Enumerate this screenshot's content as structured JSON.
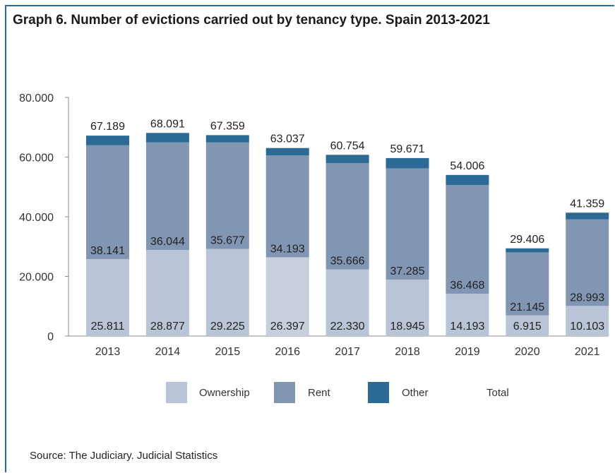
{
  "header": {
    "title": "Graph 6. Number of evictions carried out by tenancy type. Spain 2013-2021"
  },
  "footer": {
    "source": "Source: The Judiciary. Judicial Statistics"
  },
  "colors": {
    "ownership": "#b9c5d6",
    "ownership_2016": "#c7cfdd",
    "rent": "#8196b2",
    "other": "#2a6a95",
    "frame": "#2f6b9a"
  },
  "chart_data": {
    "type": "bar",
    "stacked": true,
    "categories": [
      "2013",
      "2014",
      "2015",
      "2016",
      "2017",
      "2018",
      "2019",
      "2020",
      "2021"
    ],
    "series": [
      {
        "name": "Ownership",
        "values": [
          25811,
          28877,
          29225,
          26397,
          22330,
          18945,
          14193,
          6915,
          10103
        ],
        "labels": [
          "25.811",
          "28.877",
          "29.225",
          "26.397",
          "22.330",
          "18.945",
          "14.193",
          "6.915",
          "10.103"
        ]
      },
      {
        "name": "Rent",
        "values": [
          38141,
          36044,
          35677,
          34193,
          35666,
          37285,
          36468,
          21145,
          28993
        ],
        "labels": [
          "38.141",
          "36.044",
          "35.677",
          "34.193",
          "35.666",
          "37.285",
          "36.468",
          "21.145",
          "28.993"
        ]
      },
      {
        "name": "Other",
        "values": [
          3237,
          3170,
          2457,
          2447,
          2758,
          3441,
          3345,
          1346,
          2263
        ]
      }
    ],
    "totals": {
      "name": "Total",
      "values": [
        67189,
        68091,
        67359,
        63037,
        60754,
        59671,
        54006,
        29406,
        41359
      ],
      "labels": [
        "67.189",
        "68.091",
        "67.359",
        "63.037",
        "60.754",
        "59.671",
        "54.006",
        "29.406",
        "41.359"
      ]
    },
    "ylim": [
      0,
      80000
    ],
    "yticks": [
      0,
      20000,
      40000,
      60000,
      80000
    ],
    "ytick_labels": [
      "0",
      "20.000",
      "40.000",
      "60.000",
      "80.000"
    ],
    "legend": {
      "position": "bottom",
      "entries": [
        "Ownership",
        "Rent",
        "Other",
        "Total"
      ]
    },
    "grid": false
  }
}
